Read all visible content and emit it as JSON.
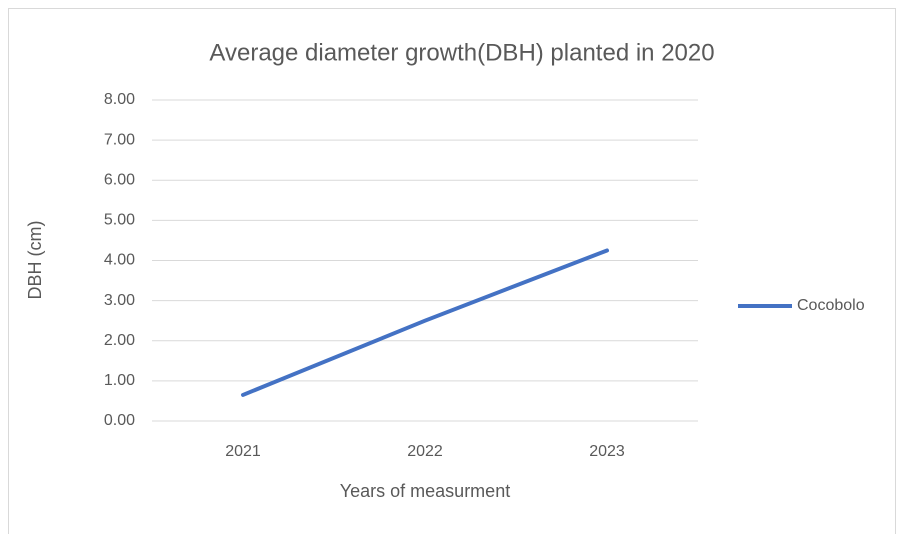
{
  "chart_data": {
    "type": "line",
    "title": "Average diameter growth(DBH) planted in 2020",
    "x_label": "Years of measurment",
    "y_label": "DBH (cm)",
    "categories": [
      "2021",
      "2022",
      "2023"
    ],
    "series": [
      {
        "name": "Cocobolo",
        "color": "#4472c4",
        "values": [
          0.65,
          2.5,
          4.25
        ]
      }
    ],
    "ylim": [
      0,
      8
    ],
    "yticks": [
      {
        "value": 0,
        "label": "0.00"
      },
      {
        "value": 1,
        "label": "1.00"
      },
      {
        "value": 2,
        "label": "2.00"
      },
      {
        "value": 3,
        "label": "3.00"
      },
      {
        "value": 4,
        "label": "4.00"
      },
      {
        "value": 5,
        "label": "5.00"
      },
      {
        "value": 6,
        "label": "6.00"
      },
      {
        "value": 7,
        "label": "7.00"
      },
      {
        "value": 8,
        "label": "8.00"
      }
    ],
    "grid": true,
    "legend": "right"
  }
}
